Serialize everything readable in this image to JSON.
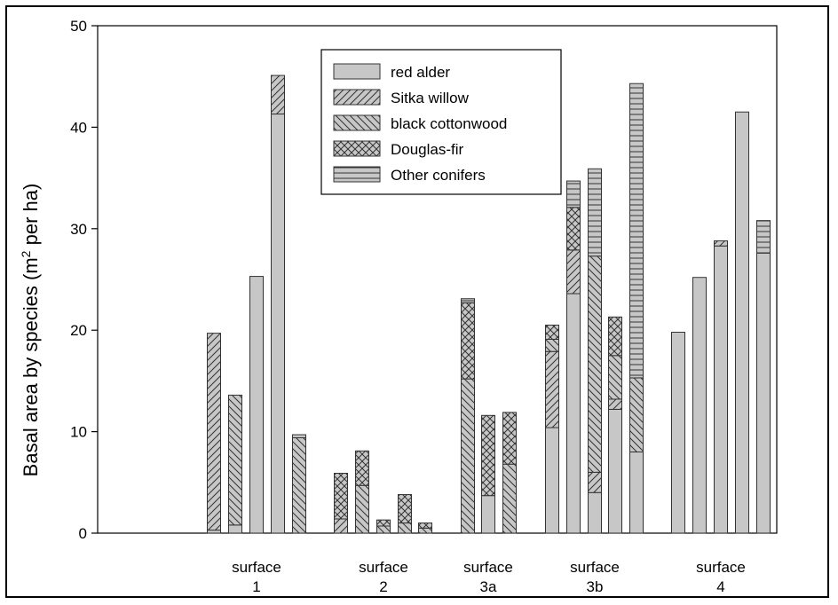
{
  "chart_data": {
    "type": "bar",
    "stacked": true,
    "ylabel": "Basal area by species (m² per ha)",
    "ylabel_parts": {
      "main": "Basal area by species (m",
      "sup": "2",
      "tail": " per ha)"
    },
    "ylim": [
      0,
      50
    ],
    "yticks": [
      "0",
      "10",
      "20",
      "30",
      "40",
      "50"
    ],
    "grid": false,
    "legend_position": "top-center",
    "groups": [
      {
        "label_line1": "surface",
        "label_line2": "1"
      },
      {
        "label_line1": "surface",
        "label_line2": "2"
      },
      {
        "label_line1": "surface",
        "label_line2": "3a"
      },
      {
        "label_line1": "surface",
        "label_line2": "3b"
      },
      {
        "label_line1": "surface",
        "label_line2": "4"
      }
    ],
    "series": [
      {
        "name": "red alder",
        "pattern": "solid"
      },
      {
        "name": "Sitka willow",
        "pattern": "hatch-forward"
      },
      {
        "name": "black cottonwood",
        "pattern": "hatch-back"
      },
      {
        "name": "Douglas-fir",
        "pattern": "crosshatch"
      },
      {
        "name": "Other conifers",
        "pattern": "horizontal"
      }
    ],
    "bars": [
      {
        "group": 0,
        "values": [
          0.3,
          19.4,
          0,
          0,
          0
        ]
      },
      {
        "group": 0,
        "values": [
          0.8,
          0,
          12.8,
          0,
          0
        ]
      },
      {
        "group": 0,
        "values": [
          25.3,
          0,
          0,
          0,
          0
        ]
      },
      {
        "group": 0,
        "values": [
          41.3,
          3.8,
          0,
          0,
          0
        ]
      },
      {
        "group": 0,
        "values": [
          0,
          0,
          9.4,
          0,
          0.3
        ]
      },
      {
        "group": 1,
        "values": [
          0,
          1.4,
          0,
          4.5,
          0
        ]
      },
      {
        "group": 1,
        "values": [
          0,
          0,
          4.7,
          3.4,
          0
        ]
      },
      {
        "group": 1,
        "values": [
          0,
          0,
          0.7,
          0.6,
          0
        ]
      },
      {
        "group": 1,
        "values": [
          0,
          0,
          1.0,
          2.8,
          0
        ]
      },
      {
        "group": 1,
        "values": [
          0,
          0,
          0.5,
          0.5,
          0
        ]
      },
      {
        "group": 2,
        "values": [
          0,
          0,
          15.2,
          7.5,
          0.4
        ]
      },
      {
        "group": 2,
        "values": [
          3.7,
          0,
          0,
          7.9,
          0
        ]
      },
      {
        "group": 2,
        "values": [
          0,
          0,
          6.8,
          5.1,
          0
        ]
      },
      {
        "group": 3,
        "values": [
          10.4,
          7.5,
          1.2,
          1.4,
          0
        ]
      },
      {
        "group": 3,
        "values": [
          23.6,
          4.3,
          0,
          4.2,
          2.6
        ]
      },
      {
        "group": 3,
        "values": [
          4.0,
          2.0,
          21.3,
          0,
          8.6
        ]
      },
      {
        "group": 3,
        "values": [
          12.2,
          1.0,
          4.3,
          3.8,
          0
        ]
      },
      {
        "group": 3,
        "values": [
          8.0,
          0,
          7.3,
          0,
          29.0
        ]
      },
      {
        "group": 4,
        "values": [
          19.8,
          0,
          0,
          0,
          0
        ]
      },
      {
        "group": 4,
        "values": [
          25.2,
          0,
          0,
          0,
          0
        ]
      },
      {
        "group": 4,
        "values": [
          28.3,
          0.5,
          0,
          0,
          0
        ]
      },
      {
        "group": 4,
        "values": [
          41.5,
          0,
          0,
          0,
          0
        ]
      },
      {
        "group": 4,
        "values": [
          27.6,
          0,
          0,
          0,
          3.2
        ]
      }
    ]
  }
}
